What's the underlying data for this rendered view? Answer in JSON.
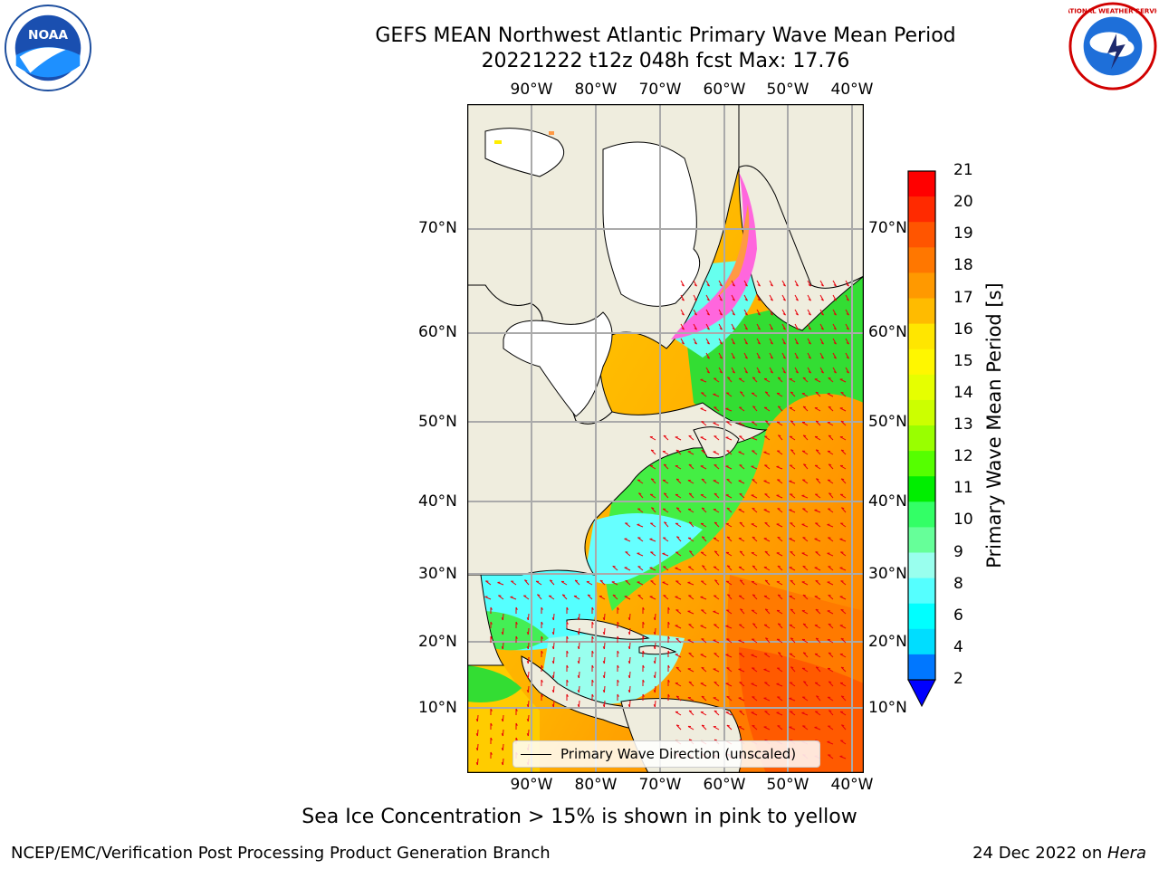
{
  "title_line1": "GEFS MEAN Northwest Atlantic Primary Wave Mean Period",
  "title_line2": "20221222 t12z 048h fcst   Max: 17.76",
  "logos": {
    "left": "noaa-logo",
    "right": "national-weather-service-logo",
    "left_text": "NOAA",
    "right_text": "NATIONAL WEATHER SERVICE"
  },
  "map": {
    "lon_labels": [
      "90°W",
      "80°W",
      "70°W",
      "60°W",
      "50°W",
      "40°W"
    ],
    "lat_labels": [
      "70°N",
      "60°N",
      "50°N",
      "40°N",
      "30°N",
      "20°N",
      "10°N"
    ],
    "legend": "Primary Wave Direction (unscaled)",
    "colors": {
      "land": "#efedde",
      "ice_pink": "#ff44cc",
      "ice_yellow": "#ffee00",
      "arrow": "#e8000b"
    }
  },
  "colorbar": {
    "label": "Primary Wave Mean Period [s]",
    "ticks": [
      "21",
      "20",
      "19",
      "18",
      "17",
      "16",
      "15",
      "14",
      "13",
      "12",
      "11",
      "10",
      "9",
      "8",
      "6",
      "4",
      "2"
    ],
    "colors": [
      "#ff0000",
      "#ff2a00",
      "#ff5500",
      "#ff7700",
      "#ff9900",
      "#ffbb00",
      "#ffe600",
      "#fff700",
      "#e6ff00",
      "#ccff00",
      "#99ff00",
      "#55ff00",
      "#00ee00",
      "#33ff66",
      "#66ff99",
      "#99ffee",
      "#55ffff",
      "#00ffff",
      "#00ddff",
      "#0077ff"
    ],
    "under_color": "#0000ff"
  },
  "caption": "Sea Ice Concentration > 15% is shown in pink to yellow",
  "footer_left": "NCEP/EMC/Verification Post Processing Product Generation Branch",
  "footer_right_date": "24 Dec 2022 on ",
  "footer_right_host": "Hera"
}
